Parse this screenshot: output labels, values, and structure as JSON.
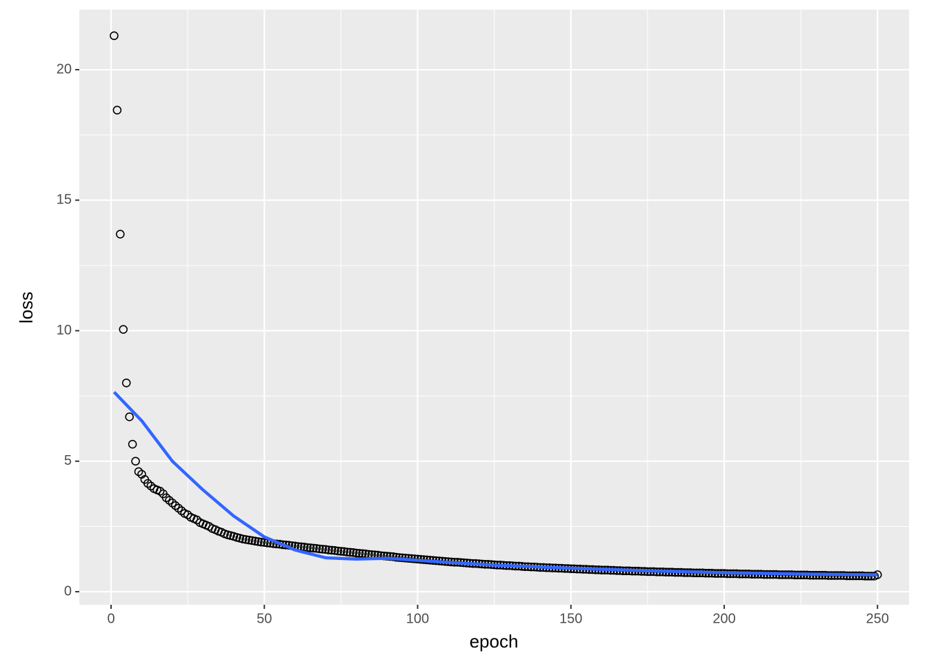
{
  "chart_data": {
    "type": "scatter",
    "x_label": "epoch",
    "y_label": "loss",
    "xlim": [
      -10.35,
      260.3
    ],
    "ylim": [
      -0.5,
      22.3
    ],
    "xticks": [
      0,
      50,
      100,
      150,
      200,
      250
    ],
    "yticks": [
      0,
      5,
      10,
      15,
      20
    ],
    "minor_xticks": [
      25,
      75,
      125,
      175,
      225
    ],
    "minor_yticks": [
      2.5,
      7.5,
      12.5,
      17.5
    ],
    "grid": true,
    "panel_color": "#ebebeb",
    "series": [
      {
        "type": "scatter",
        "color": "#000000",
        "x": [
          1,
          2,
          3,
          4,
          5,
          6,
          7,
          8,
          9,
          10,
          11,
          12,
          13,
          14,
          15,
          16,
          17,
          18,
          19,
          20,
          21,
          22,
          23,
          24,
          25,
          26,
          27,
          28,
          29,
          30,
          31,
          32,
          33,
          34,
          35,
          36,
          37,
          38,
          39,
          40,
          41,
          42,
          43,
          44,
          45,
          46,
          47,
          48,
          49,
          50,
          51,
          52,
          53,
          54,
          55,
          56,
          57,
          58,
          59,
          60,
          61,
          62,
          63,
          64,
          65,
          66,
          67,
          68,
          69,
          70,
          71,
          72,
          73,
          74,
          75,
          76,
          77,
          78,
          79,
          80,
          81,
          82,
          83,
          84,
          85,
          86,
          87,
          88,
          89,
          90,
          91,
          92,
          93,
          94,
          95,
          96,
          97,
          98,
          99,
          100,
          101,
          102,
          103,
          104,
          105,
          106,
          107,
          108,
          109,
          110,
          111,
          112,
          113,
          114,
          115,
          116,
          117,
          118,
          119,
          120,
          121,
          122,
          123,
          124,
          125,
          126,
          127,
          128,
          129,
          130,
          131,
          132,
          133,
          134,
          135,
          136,
          137,
          138,
          139,
          140,
          141,
          142,
          143,
          144,
          145,
          146,
          147,
          148,
          149,
          150,
          151,
          152,
          153,
          154,
          155,
          156,
          157,
          158,
          159,
          160,
          161,
          162,
          163,
          164,
          165,
          166,
          167,
          168,
          169,
          170,
          171,
          172,
          173,
          174,
          175,
          176,
          177,
          178,
          179,
          180,
          181,
          182,
          183,
          184,
          185,
          186,
          187,
          188,
          189,
          190,
          191,
          192,
          193,
          194,
          195,
          196,
          197,
          198,
          199,
          200,
          201,
          202,
          203,
          204,
          205,
          206,
          207,
          208,
          209,
          210,
          211,
          212,
          213,
          214,
          215,
          216,
          217,
          218,
          219,
          220,
          221,
          222,
          223,
          224,
          225,
          226,
          227,
          228,
          229,
          230,
          231,
          232,
          233,
          234,
          235,
          236,
          237,
          238,
          239,
          240,
          241,
          242,
          243,
          244,
          245,
          246,
          247,
          248,
          249,
          250
        ],
        "values": [
          21.3,
          18.45,
          13.7,
          10.05,
          8.0,
          6.7,
          5.65,
          5.0,
          4.6,
          4.5,
          4.3,
          4.15,
          4.05,
          3.95,
          3.9,
          3.85,
          3.75,
          3.6,
          3.5,
          3.4,
          3.3,
          3.2,
          3.1,
          3.0,
          2.95,
          2.85,
          2.8,
          2.75,
          2.65,
          2.6,
          2.55,
          2.5,
          2.42,
          2.38,
          2.32,
          2.28,
          2.22,
          2.18,
          2.15,
          2.12,
          2.08,
          2.05,
          2.02,
          2.0,
          1.98,
          1.96,
          1.94,
          1.92,
          1.9,
          1.89,
          1.87,
          1.86,
          1.84,
          1.83,
          1.82,
          1.8,
          1.79,
          1.78,
          1.76,
          1.75,
          1.73,
          1.72,
          1.71,
          1.69,
          1.68,
          1.67,
          1.66,
          1.64,
          1.63,
          1.62,
          1.6,
          1.59,
          1.58,
          1.56,
          1.55,
          1.54,
          1.52,
          1.51,
          1.5,
          1.48,
          1.47,
          1.46,
          1.45,
          1.43,
          1.42,
          1.41,
          1.4,
          1.38,
          1.37,
          1.36,
          1.35,
          1.34,
          1.32,
          1.31,
          1.3,
          1.29,
          1.28,
          1.27,
          1.26,
          1.25,
          1.24,
          1.23,
          1.22,
          1.21,
          1.2,
          1.19,
          1.18,
          1.17,
          1.16,
          1.15,
          1.14,
          1.13,
          1.13,
          1.12,
          1.11,
          1.1,
          1.09,
          1.08,
          1.08,
          1.07,
          1.06,
          1.05,
          1.05,
          1.04,
          1.03,
          1.02,
          1.02,
          1.01,
          1.0,
          1.0,
          0.99,
          0.98,
          0.98,
          0.97,
          0.96,
          0.96,
          0.95,
          0.95,
          0.94,
          0.93,
          0.93,
          0.92,
          0.92,
          0.91,
          0.91,
          0.9,
          0.9,
          0.89,
          0.89,
          0.88,
          0.88,
          0.87,
          0.87,
          0.86,
          0.86,
          0.85,
          0.85,
          0.84,
          0.84,
          0.83,
          0.83,
          0.83,
          0.82,
          0.82,
          0.81,
          0.81,
          0.8,
          0.8,
          0.8,
          0.79,
          0.79,
          0.79,
          0.78,
          0.78,
          0.77,
          0.77,
          0.77,
          0.76,
          0.76,
          0.76,
          0.75,
          0.75,
          0.75,
          0.74,
          0.74,
          0.74,
          0.73,
          0.73,
          0.73,
          0.72,
          0.72,
          0.72,
          0.72,
          0.71,
          0.71,
          0.71,
          0.7,
          0.7,
          0.7,
          0.7,
          0.69,
          0.69,
          0.69,
          0.69,
          0.68,
          0.68,
          0.68,
          0.68,
          0.67,
          0.67,
          0.67,
          0.67,
          0.66,
          0.66,
          0.66,
          0.66,
          0.66,
          0.65,
          0.65,
          0.65,
          0.65,
          0.65,
          0.64,
          0.64,
          0.64,
          0.64,
          0.64,
          0.63,
          0.63,
          0.63,
          0.63,
          0.63,
          0.63,
          0.62,
          0.62,
          0.62,
          0.62,
          0.62,
          0.62,
          0.61,
          0.61,
          0.61,
          0.61,
          0.61,
          0.61,
          0.6,
          0.6,
          0.6,
          0.6,
          0.65
        ]
      },
      {
        "type": "line",
        "color": "#3366ff",
        "x": [
          1,
          10,
          20,
          30,
          40,
          50,
          60,
          70,
          80,
          90,
          100,
          125,
          150,
          175,
          200,
          225,
          250
        ],
        "values": [
          7.65,
          6.55,
          5.0,
          3.9,
          2.9,
          2.1,
          1.6,
          1.3,
          1.25,
          1.28,
          1.2,
          1.02,
          0.9,
          0.8,
          0.73,
          0.68,
          0.65
        ]
      }
    ]
  }
}
